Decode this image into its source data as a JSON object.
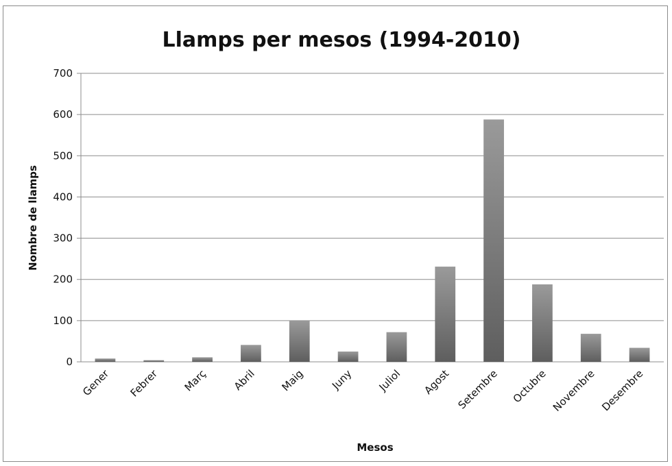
{
  "chart_data": {
    "type": "bar",
    "title": "Llamps per mesos (1994-2010)",
    "xlabel": "Mesos",
    "ylabel": "Nombre de llamps",
    "categories": [
      "Gener",
      "Febrer",
      "Març",
      "Abril",
      "Maig",
      "Juny",
      "Juliol",
      "Agost",
      "Setembre",
      "Octubre",
      "Novembre",
      "Desembre"
    ],
    "values": [
      8,
      4,
      11,
      41,
      100,
      25,
      72,
      231,
      588,
      188,
      68,
      34
    ],
    "ylim": [
      0,
      700
    ],
    "yticks": [
      0,
      100,
      200,
      300,
      400,
      500,
      600,
      700
    ],
    "grid": true,
    "legend": "none",
    "colors": {
      "bar_light": "#9a9a9a",
      "bar_dark": "#5e5e5e",
      "grid": "#8c8c8c"
    }
  }
}
